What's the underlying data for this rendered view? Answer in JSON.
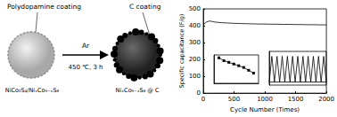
{
  "diagram": {
    "labels": {
      "coating_before": "Polydopamine coating",
      "coating_after": "C coating",
      "arrow_top": "Ar",
      "arrow_bottom": "450 ℃, 3 h",
      "material_before": "NiCo₂S₄/NiₓCo₉₋ₓS₈",
      "material_after": "NiₓCo₉₋ₓS₈ @ C"
    }
  },
  "chart_data": [
    {
      "type": "line",
      "xlabel": "Cycle Number (Times)",
      "ylabel": "Specific capacitance (F/g)",
      "x": [
        0,
        50,
        100,
        150,
        200,
        300,
        400,
        500,
        600,
        700,
        800,
        900,
        1000,
        1100,
        1200,
        1300,
        1400,
        1500,
        1600,
        1700,
        1800,
        1900,
        2000
      ],
      "values": [
        405,
        422,
        428,
        425,
        421,
        418,
        416,
        414,
        413,
        412,
        411,
        410,
        410,
        409,
        409,
        408,
        408,
        407,
        407,
        406,
        406,
        405,
        405
      ],
      "color": "#000000",
      "xlim": [
        0,
        2000
      ],
      "xticks": [
        0,
        500,
        1000,
        1500,
        2000
      ],
      "ylim": [
        0,
        500
      ],
      "yticks": [
        0,
        100,
        200,
        300,
        400,
        500
      ]
    },
    {
      "type": "line",
      "marker": "square",
      "tick_labels": false,
      "x": [
        1,
        2,
        3,
        4,
        5,
        6,
        7,
        8
      ],
      "values": [
        0.95,
        0.9,
        0.87,
        0.84,
        0.81,
        0.78,
        0.73,
        0.68
      ],
      "color": "#000000",
      "xlim": [
        0,
        9
      ],
      "ylim": [
        0.5,
        1
      ]
    },
    {
      "type": "line",
      "tick_labels": false,
      "x": [
        0,
        1,
        2,
        3,
        4,
        5,
        6,
        7,
        8,
        9,
        10,
        11,
        12,
        13,
        14,
        15,
        16,
        17,
        18,
        19,
        20,
        21,
        22
      ],
      "values": [
        0,
        0.42,
        0,
        0.42,
        0,
        0.42,
        0,
        0.42,
        0,
        0.42,
        0,
        0.42,
        0,
        0.42,
        0,
        0.42,
        0,
        0.42,
        0,
        0.42,
        0,
        0.42,
        0
      ],
      "color": "#000000",
      "xlim": [
        0,
        22
      ],
      "ylim": [
        -0.05,
        0.5
      ]
    }
  ]
}
